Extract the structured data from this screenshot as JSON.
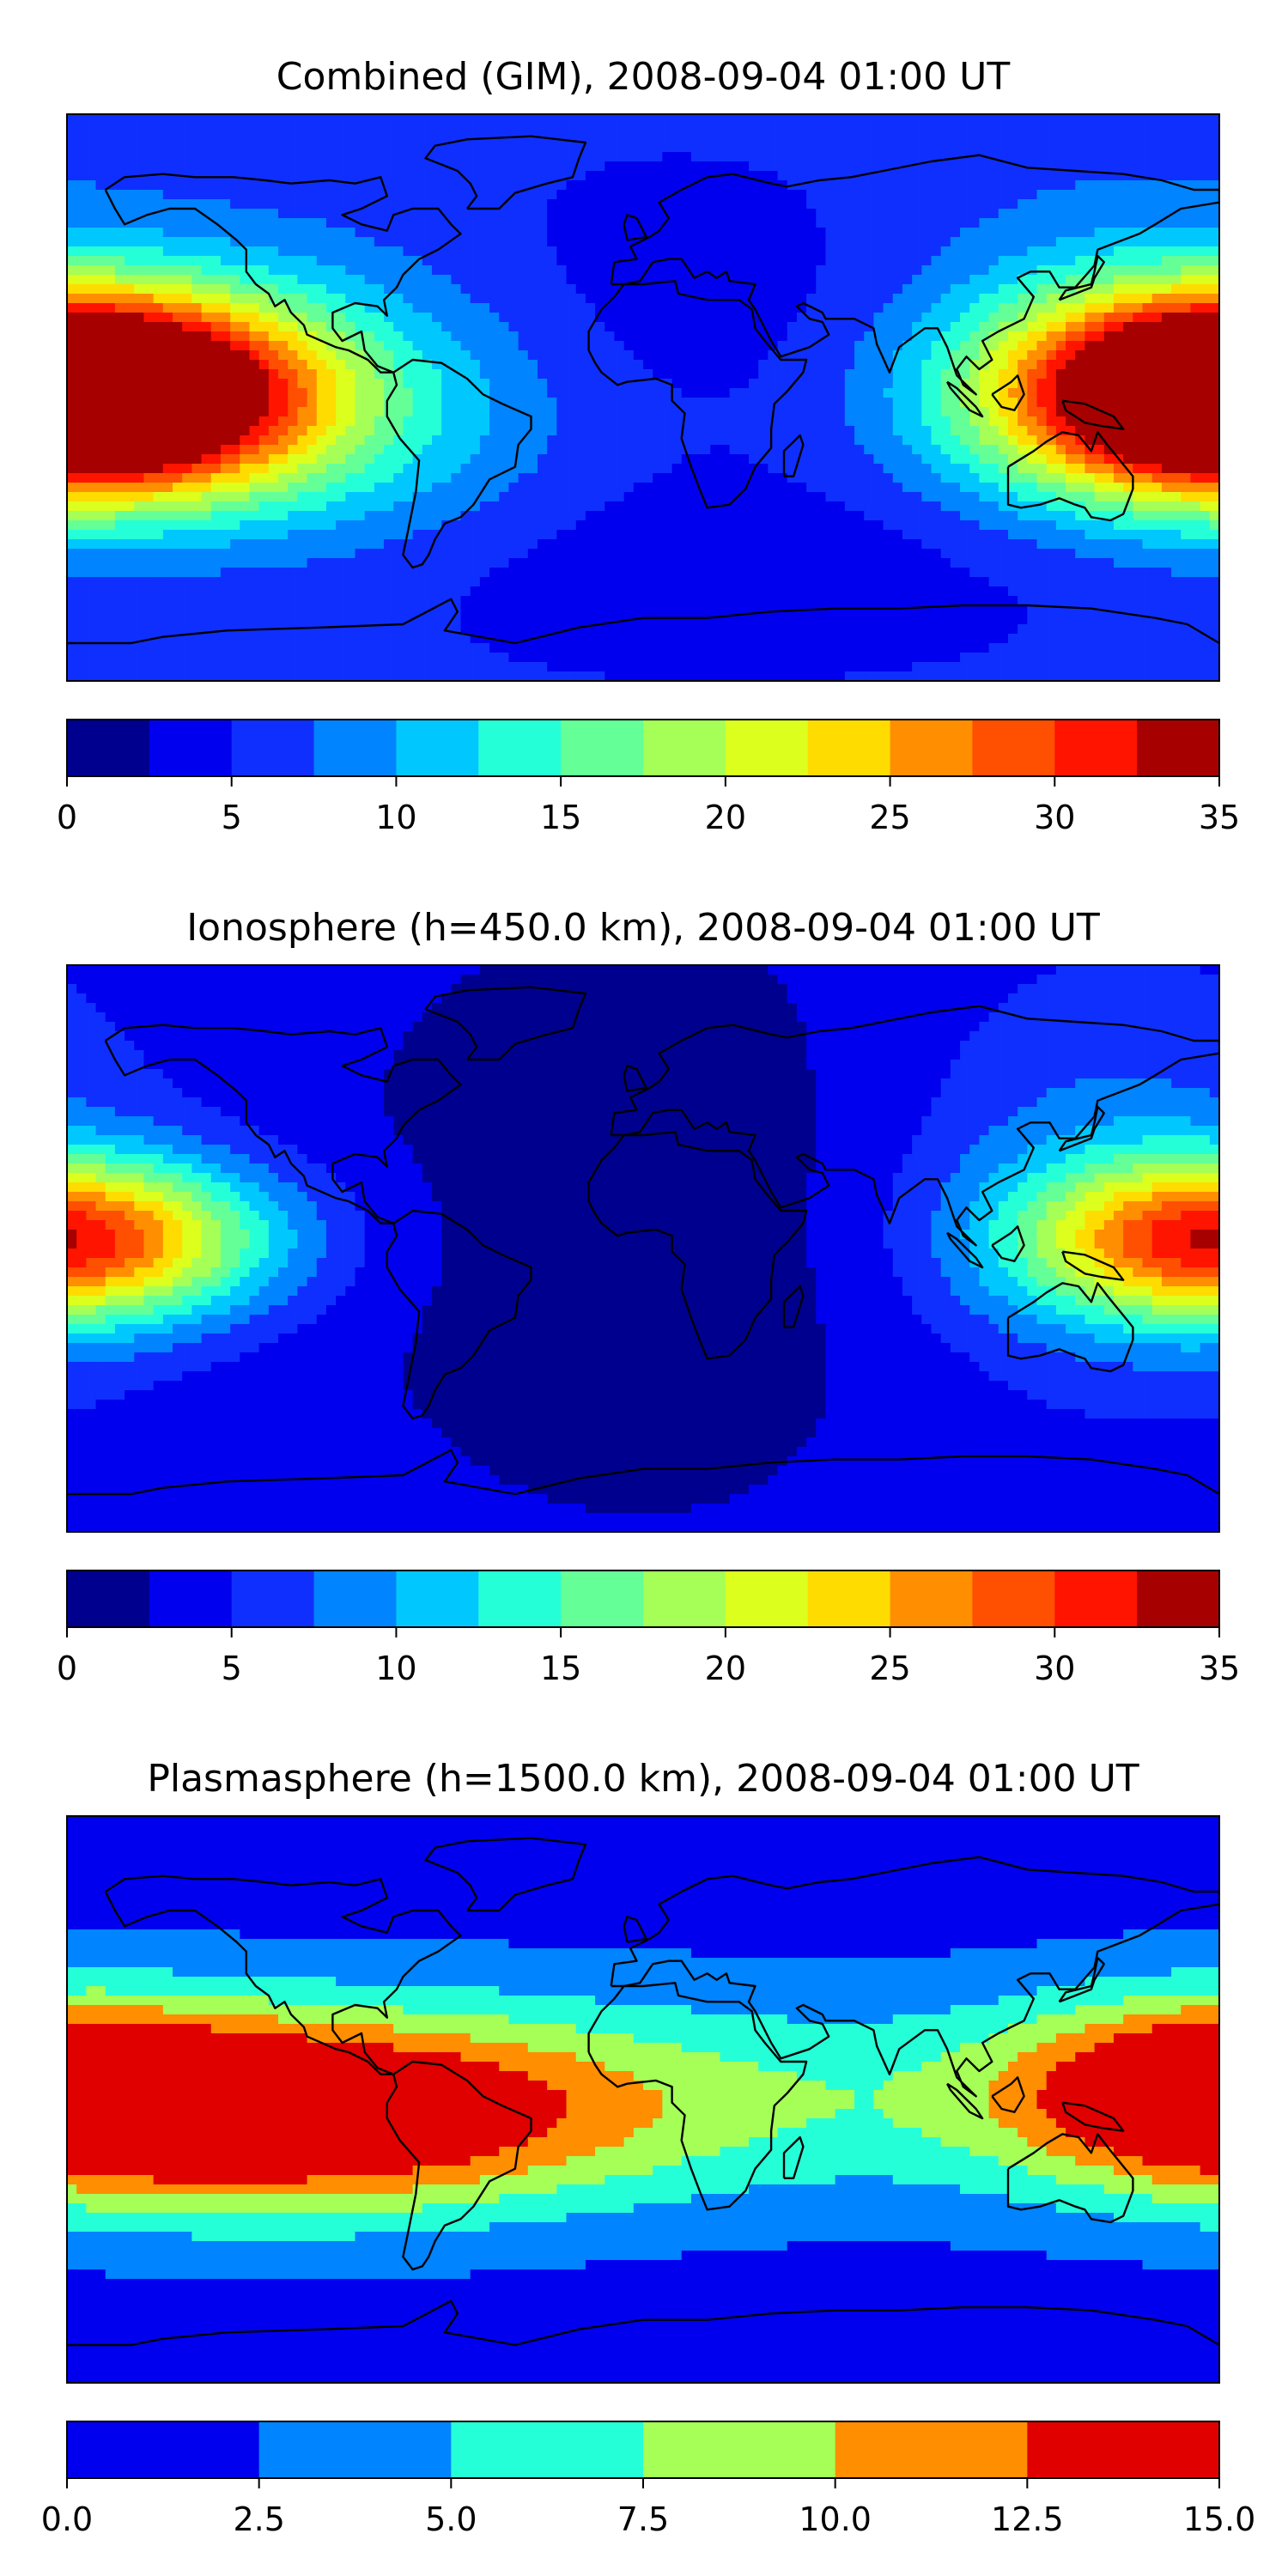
{
  "chart_data": [
    {
      "type": "heatmap",
      "title": "Combined (GIM), 2008-09-04 01:00 UT",
      "colorbar": {
        "levels": [
          0,
          2.5,
          5,
          7.5,
          10,
          12.5,
          15,
          17.5,
          20,
          22.5,
          25,
          27.5,
          30,
          32.5,
          35
        ],
        "colors": [
          "#00008f",
          "#0000ef",
          "#0f2fff",
          "#0084ff",
          "#00c8ff",
          "#25ffd8",
          "#64ff97",
          "#a5ff57",
          "#dcff1e",
          "#ffdc00",
          "#ff8e00",
          "#ff4f00",
          "#ff1400",
          "#a70000"
        ],
        "tick_values": [
          0,
          5,
          10,
          15,
          20,
          25,
          30,
          35
        ],
        "tick_labels": [
          "0",
          "5",
          "10",
          "15",
          "20",
          "25",
          "30",
          "35"
        ]
      },
      "lon_range": [
        -180,
        180
      ],
      "lat_range": [
        -90,
        90
      ],
      "features": [
        {
          "lon": -170,
          "lat": 0,
          "peak": 30,
          "slon": 50,
          "slat": 22
        },
        {
          "lon": 180,
          "lat": 2,
          "peak": 30,
          "slon": 45,
          "slat": 22
        },
        {
          "lon": -90,
          "lat": -3,
          "peak": 12,
          "slon": 55,
          "slat": 40
        },
        {
          "lon": 130,
          "lat": 15,
          "peak": 10,
          "slon": 50,
          "slat": 40
        }
      ],
      "baseline": 6,
      "low_regions": [
        {
          "lon": 0,
          "lat": 30,
          "depth": 3,
          "slon": 90,
          "slat": 35
        },
        {
          "lon": 0,
          "lat": -55,
          "depth": 3,
          "slon": 120,
          "slat": 25
        }
      ]
    },
    {
      "type": "heatmap",
      "title": "Ionosphere  (h=450.0 km), 2008-09-04 01:00 UT",
      "colorbar": {
        "levels": [
          0,
          2.5,
          5,
          7.5,
          10,
          12.5,
          15,
          17.5,
          20,
          22.5,
          25,
          27.5,
          30,
          32.5,
          35
        ],
        "colors": [
          "#00008f",
          "#0000ef",
          "#0f2fff",
          "#0084ff",
          "#00c8ff",
          "#25ffd8",
          "#64ff97",
          "#a5ff57",
          "#dcff1e",
          "#ffdc00",
          "#ff8e00",
          "#ff4f00",
          "#ff1400",
          "#a70000"
        ],
        "tick_values": [
          0,
          5,
          10,
          15,
          20,
          25,
          30,
          35
        ],
        "tick_labels": [
          "0",
          "5",
          "10",
          "15",
          "20",
          "25",
          "30",
          "35"
        ]
      },
      "lon_range": [
        -180,
        180
      ],
      "lat_range": [
        -90,
        90
      ],
      "features": [
        {
          "lon": -175,
          "lat": 3,
          "peak": 17,
          "slon": 45,
          "slat": 18
        },
        {
          "lon": 178,
          "lat": 2,
          "peak": 17,
          "slon": 40,
          "slat": 18
        },
        {
          "lon": 140,
          "lat": 20,
          "peak": 9,
          "slon": 45,
          "slat": 45
        }
      ],
      "baseline": 4,
      "low_regions": [
        {
          "lon": 0,
          "lat": 10,
          "depth": 3,
          "slon": 80,
          "slat": 80
        }
      ]
    },
    {
      "type": "heatmap",
      "title": "Plasmasphere (h=1500.0 km), 2008-09-04 01:00 UT",
      "colorbar": {
        "levels": [
          0,
          2.5,
          5,
          7.5,
          10,
          12.5,
          15
        ],
        "colors": [
          "#0000ef",
          "#0084ff",
          "#25ffd8",
          "#a5ff57",
          "#ff8e00",
          "#e00000"
        ],
        "tick_values": [
          0,
          2.5,
          5,
          7.5,
          10,
          12.5,
          15
        ],
        "tick_labels": [
          "0.0",
          "2.5",
          "5.0",
          "7.5",
          "10.0",
          "12.5",
          "15.0"
        ]
      },
      "lon_range": [
        -180,
        180
      ],
      "lat_range": [
        -90,
        90
      ],
      "features": [
        {
          "lon": -110,
          "lat": -5,
          "peak": 13.5,
          "slon": 70,
          "slat": 22
        },
        {
          "lon": 175,
          "lat": 5,
          "peak": 10.5,
          "slon": 40,
          "slat": 20
        },
        {
          "lon": 0,
          "lat": 0,
          "peak": 7,
          "slon": 240,
          "slat": 24
        }
      ],
      "baseline": 1.5,
      "low_regions": []
    }
  ]
}
